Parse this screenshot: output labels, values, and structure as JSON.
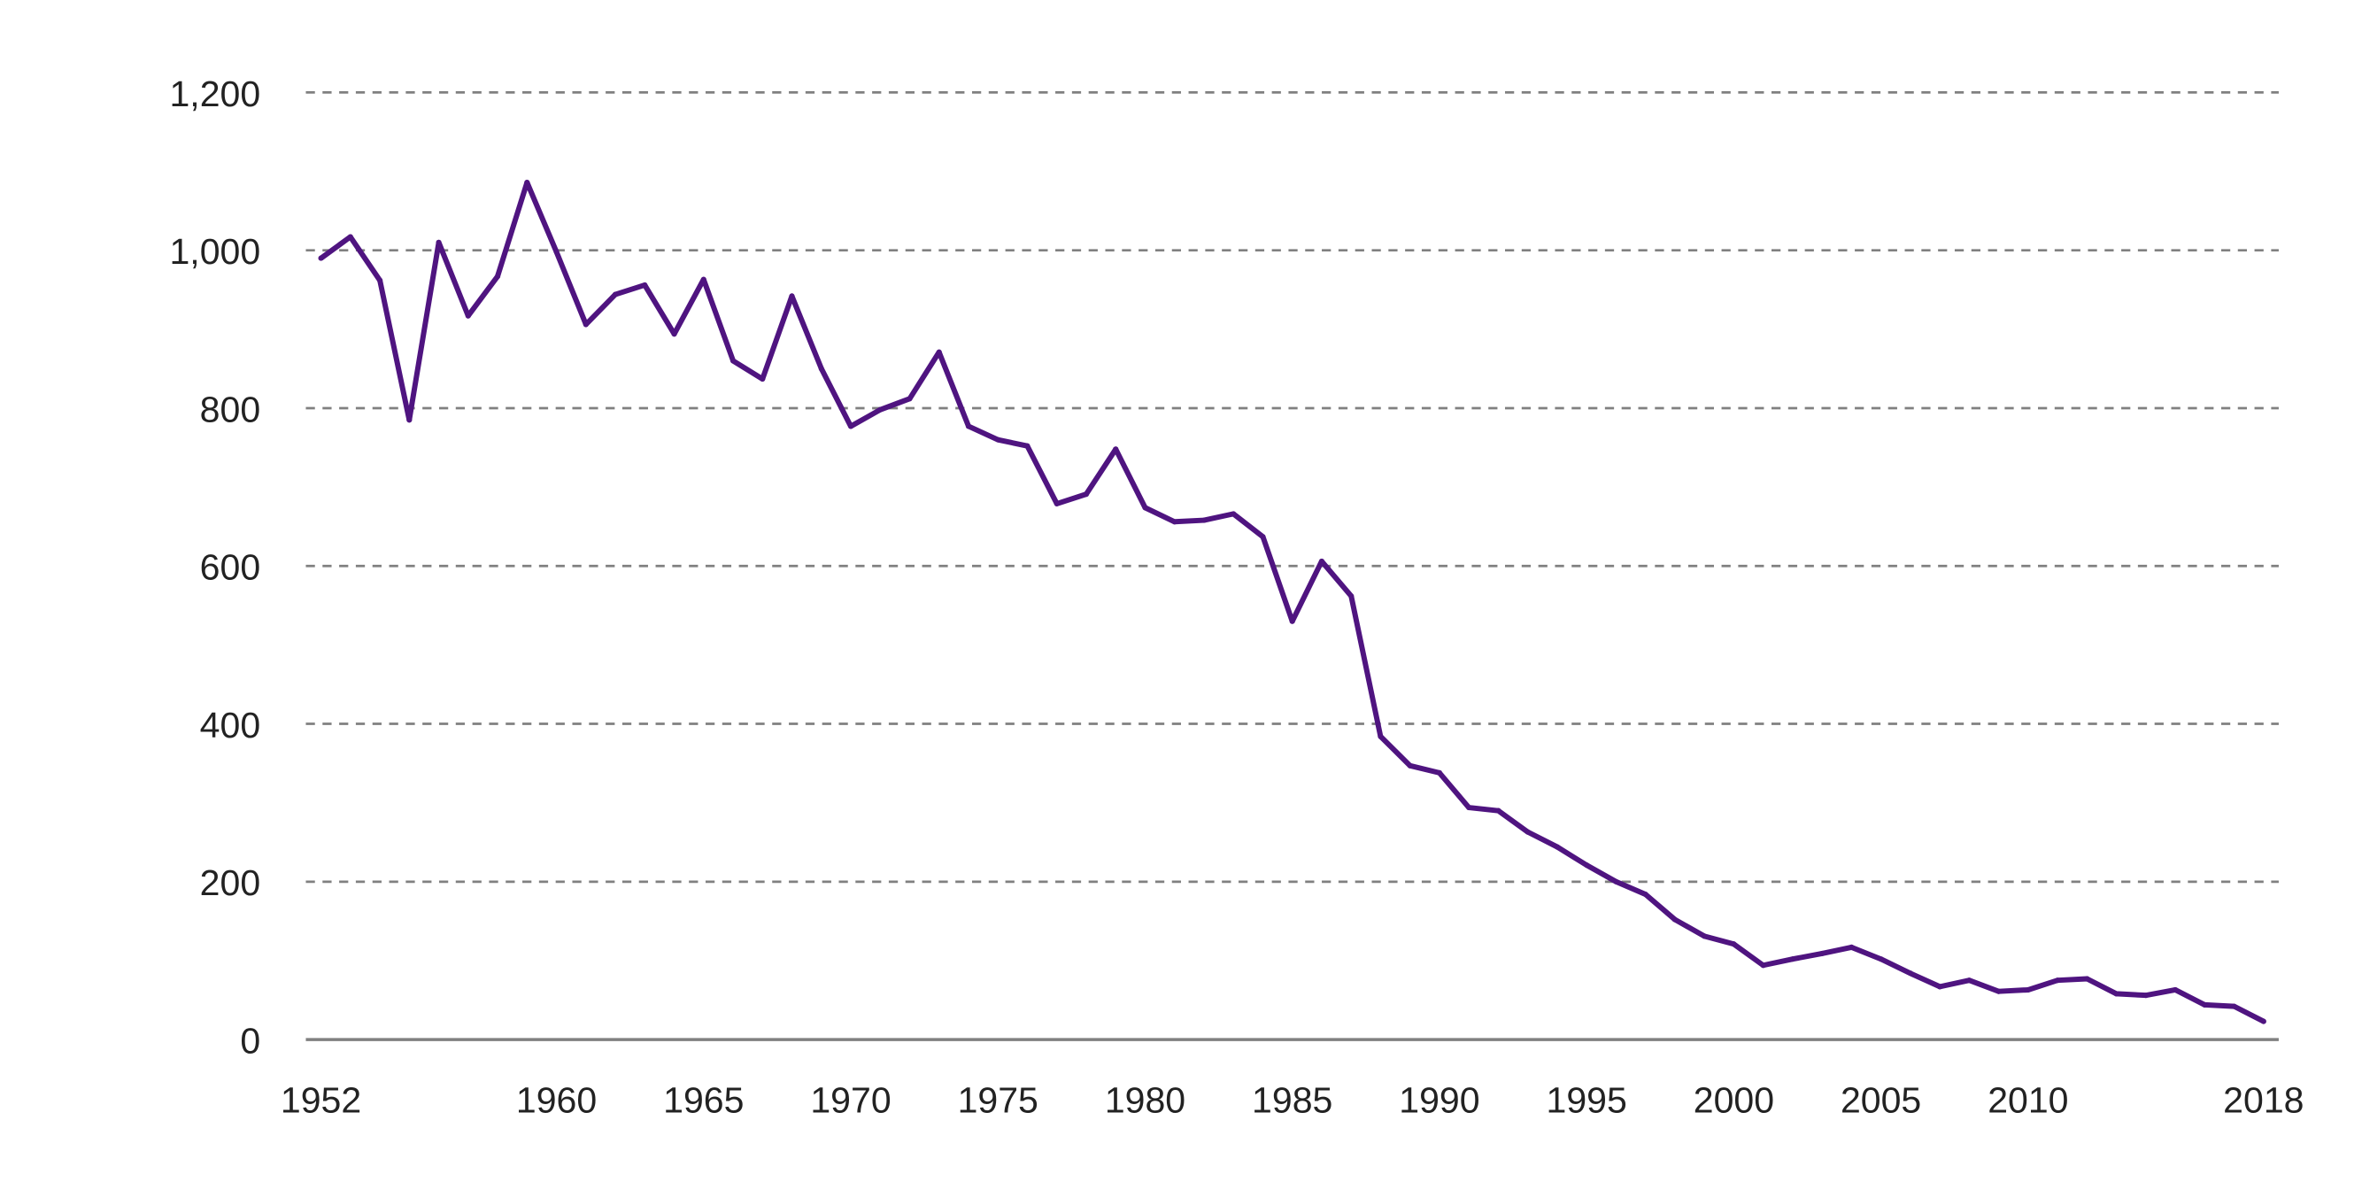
{
  "chart_data": {
    "type": "line",
    "title": "",
    "xlabel": "",
    "ylabel": "",
    "ylim": [
      0,
      1200
    ],
    "xlim": [
      1952,
      2018
    ],
    "yticks": [
      0,
      200,
      400,
      600,
      800,
      1000,
      1200
    ],
    "ytick_labels": [
      "0",
      "200",
      "400",
      "600",
      "800",
      "1,000",
      "1,200"
    ],
    "xticks": [
      1952,
      1960,
      1965,
      1970,
      1975,
      1980,
      1985,
      1990,
      1995,
      2000,
      2005,
      2010,
      2018
    ],
    "xtick_labels": [
      "1952",
      "1960",
      "1965",
      "1970",
      "1975",
      "1980",
      "1985",
      "1990",
      "1995",
      "2000",
      "2005",
      "2010",
      "2018"
    ],
    "grid": true,
    "grid_style": "dashed horizontal",
    "series": [
      {
        "name": "",
        "color": "#4f1480",
        "x": [
          1952,
          1953,
          1954,
          1955,
          1956,
          1957,
          1958,
          1959,
          1960,
          1961,
          1962,
          1963,
          1964,
          1965,
          1966,
          1967,
          1968,
          1969,
          1970,
          1971,
          1972,
          1973,
          1974,
          1975,
          1976,
          1977,
          1978,
          1979,
          1980,
          1981,
          1982,
          1983,
          1984,
          1985,
          1986,
          1987,
          1988,
          1989,
          1990,
          1991,
          1992,
          1993,
          1994,
          1995,
          1996,
          1997,
          1998,
          1999,
          2000,
          2001,
          2002,
          2003,
          2004,
          2005,
          2006,
          2007,
          2008,
          2009,
          2010,
          2011,
          2012,
          2013,
          2014,
          2015,
          2016,
          2017,
          2018
        ],
        "values": [
          990,
          1017,
          962,
          785,
          1010,
          917,
          967,
          1086,
          998,
          906,
          944,
          956,
          894,
          963,
          860,
          837,
          942,
          850,
          777,
          798,
          812,
          871,
          777,
          760,
          752,
          679,
          691,
          748,
          674,
          656,
          658,
          666,
          637,
          530,
          606,
          562,
          384,
          347,
          338,
          294,
          290,
          263,
          244,
          221,
          200,
          184,
          152,
          131,
          121,
          94,
          102,
          109,
          117,
          102,
          84,
          67,
          75,
          61,
          63,
          75,
          77,
          58,
          56,
          63,
          44,
          42,
          23
        ]
      }
    ]
  }
}
